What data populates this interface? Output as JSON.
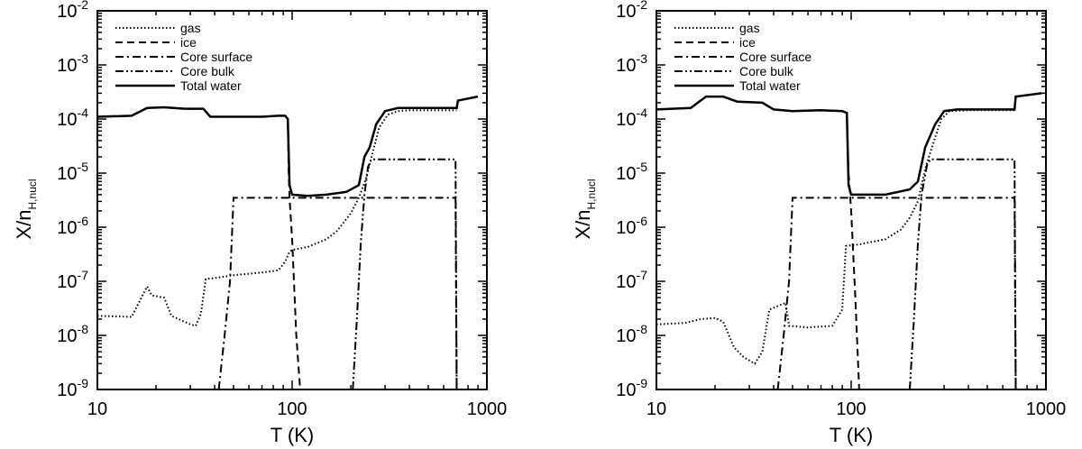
{
  "chart_data": [
    {
      "type": "line",
      "xlabel": "T (K)",
      "ylabel": "X/n",
      "ylabel_sub": "H,nucl",
      "xscale": "log",
      "yscale": "log",
      "xlim": [
        10,
        1000
      ],
      "ylim": [
        1e-09,
        0.01
      ],
      "x_ticks": [
        {
          "value": 10,
          "label": "10"
        },
        {
          "value": 100,
          "label": "100"
        },
        {
          "value": 1000,
          "label": "1000"
        }
      ],
      "y_ticks": [
        {
          "value": 1e-09,
          "base": "10",
          "exp": "-9"
        },
        {
          "value": 1e-08,
          "base": "10",
          "exp": "-8"
        },
        {
          "value": 1e-07,
          "base": "10",
          "exp": "-7"
        },
        {
          "value": 1e-06,
          "base": "10",
          "exp": "-6"
        },
        {
          "value": 1e-05,
          "base": "10",
          "exp": "-5"
        },
        {
          "value": 0.0001,
          "base": "10",
          "exp": "-4"
        },
        {
          "value": 0.001,
          "base": "10",
          "exp": "-3"
        },
        {
          "value": 0.01,
          "base": "10",
          "exp": "-2"
        }
      ],
      "legend_position": "top-left",
      "series": [
        {
          "name": "gas",
          "style": "dotted",
          "points": [
            [
              10,
              2.3e-08
            ],
            [
              15,
              2.2e-08
            ],
            [
              18,
              8e-08
            ],
            [
              19,
              5.5e-08
            ],
            [
              22,
              5e-08
            ],
            [
              24,
              2.3e-08
            ],
            [
              30,
              1.6e-08
            ],
            [
              32,
              1.5e-08
            ],
            [
              34,
              2.5e-08
            ],
            [
              36,
              1.1e-07
            ],
            [
              40,
              1.15e-07
            ],
            [
              50,
              1.3e-07
            ],
            [
              70,
              1.45e-07
            ],
            [
              85,
              1.6e-07
            ],
            [
              92,
              2.3e-07
            ],
            [
              97,
              3.5e-07
            ],
            [
              100,
              3.8e-07
            ],
            [
              120,
              4.3e-07
            ],
            [
              150,
              6e-07
            ],
            [
              170,
              8.5e-07
            ],
            [
              200,
              1.8e-06
            ],
            [
              220,
              3.5e-06
            ],
            [
              240,
              8e-06
            ],
            [
              260,
              2.5e-05
            ],
            [
              280,
              7e-05
            ],
            [
              310,
              0.00012
            ],
            [
              350,
              0.00014
            ],
            [
              400,
              0.000145
            ],
            [
              700,
              0.000145
            ]
          ]
        },
        {
          "name": "ice",
          "style": "dashed",
          "points": [
            [
              10,
              0.00011
            ],
            [
              15,
              0.000115
            ],
            [
              18,
              0.00016
            ],
            [
              22,
              0.000165
            ],
            [
              28,
              0.000155
            ],
            [
              35,
              0.000155
            ],
            [
              38,
              0.00011
            ],
            [
              50,
              0.00011
            ],
            [
              70,
              0.00011
            ],
            [
              85,
              0.000115
            ],
            [
              92,
              0.000115
            ],
            [
              95,
              0.0001
            ],
            [
              96,
              1e-05
            ],
            [
              97,
              3.5e-06
            ],
            [
              100,
              6e-07
            ],
            [
              105,
              1e-08
            ],
            [
              110,
              1e-09
            ]
          ]
        },
        {
          "name": "Core surface",
          "style": "dashdot",
          "points": [
            [
              42,
              1e-09
            ],
            [
              45,
              1e-08
            ],
            [
              48,
              1e-07
            ],
            [
              50,
              3.5e-06
            ],
            [
              60,
              3.5e-06
            ],
            [
              100,
              3.5e-06
            ],
            [
              300,
              3.5e-06
            ],
            [
              500,
              3.5e-06
            ],
            [
              690,
              3.5e-06
            ],
            [
              700,
              1e-09
            ]
          ]
        },
        {
          "name": "Core bulk",
          "style": "dashdotdot",
          "points": [
            [
              205,
              1e-09
            ],
            [
              215,
              2e-08
            ],
            [
              225,
              5e-07
            ],
            [
              235,
              4e-06
            ],
            [
              245,
              1.3e-05
            ],
            [
              255,
              1.8e-05
            ],
            [
              400,
              1.8e-05
            ],
            [
              690,
              1.8e-05
            ],
            [
              700,
              1e-09
            ]
          ]
        },
        {
          "name": "Total water",
          "style": "solid",
          "points": [
            [
              10,
              0.00011
            ],
            [
              15,
              0.000115
            ],
            [
              18,
              0.00016
            ],
            [
              22,
              0.000165
            ],
            [
              28,
              0.000155
            ],
            [
              35,
              0.000155
            ],
            [
              38,
              0.00011
            ],
            [
              50,
              0.00011
            ],
            [
              70,
              0.00011
            ],
            [
              85,
              0.000115
            ],
            [
              92,
              0.000115
            ],
            [
              95,
              0.0001
            ],
            [
              97,
              6e-06
            ],
            [
              100,
              4e-06
            ],
            [
              120,
              3.8e-06
            ],
            [
              150,
              4e-06
            ],
            [
              190,
              4.5e-06
            ],
            [
              220,
              6e-06
            ],
            [
              235,
              2e-05
            ],
            [
              250,
              3e-05
            ],
            [
              270,
              8e-05
            ],
            [
              300,
              0.00014
            ],
            [
              350,
              0.00016
            ],
            [
              500,
              0.00016
            ],
            [
              700,
              0.00016
            ],
            [
              710,
              0.00022
            ],
            [
              900,
              0.00026
            ]
          ]
        }
      ]
    },
    {
      "type": "line",
      "xlabel": "T (K)",
      "ylabel": "X/n",
      "ylabel_sub": "H,nucl",
      "xscale": "log",
      "yscale": "log",
      "xlim": [
        10,
        1000
      ],
      "ylim": [
        1e-09,
        0.01
      ],
      "x_ticks": [
        {
          "value": 10,
          "label": "10"
        },
        {
          "value": 100,
          "label": "100"
        },
        {
          "value": 1000,
          "label": "1000"
        }
      ],
      "y_ticks": [
        {
          "value": 1e-09,
          "base": "10",
          "exp": "-9"
        },
        {
          "value": 1e-08,
          "base": "10",
          "exp": "-8"
        },
        {
          "value": 1e-07,
          "base": "10",
          "exp": "-7"
        },
        {
          "value": 1e-06,
          "base": "10",
          "exp": "-6"
        },
        {
          "value": 1e-05,
          "base": "10",
          "exp": "-5"
        },
        {
          "value": 0.0001,
          "base": "10",
          "exp": "-4"
        },
        {
          "value": 0.001,
          "base": "10",
          "exp": "-3"
        },
        {
          "value": 0.01,
          "base": "10",
          "exp": "-2"
        }
      ],
      "legend_position": "top-left",
      "series": [
        {
          "name": "gas",
          "style": "dotted",
          "points": [
            [
              10,
              1.6e-08
            ],
            [
              14,
              1.7e-08
            ],
            [
              17,
              2e-08
            ],
            [
              20,
              2.1e-08
            ],
            [
              22,
              1.8e-08
            ],
            [
              25,
              6e-09
            ],
            [
              28,
              4e-09
            ],
            [
              32,
              3e-09
            ],
            [
              35,
              5e-09
            ],
            [
              38,
              3e-08
            ],
            [
              42,
              3.5e-08
            ],
            [
              46,
              4e-08
            ],
            [
              48,
              1.5e-08
            ],
            [
              60,
              1.4e-08
            ],
            [
              80,
              1.5e-08
            ],
            [
              90,
              3e-08
            ],
            [
              94,
              4.5e-07
            ],
            [
              110,
              4.8e-07
            ],
            [
              150,
              6e-07
            ],
            [
              180,
              9e-07
            ],
            [
              200,
              1.5e-06
            ],
            [
              220,
              3e-06
            ],
            [
              240,
              1.2e-05
            ],
            [
              260,
              3e-05
            ],
            [
              290,
              0.0001
            ],
            [
              320,
              0.00014
            ],
            [
              400,
              0.000145
            ],
            [
              700,
              0.000145
            ]
          ]
        },
        {
          "name": "ice",
          "style": "dashed",
          "points": [
            [
              10,
              0.00015
            ],
            [
              15,
              0.00016
            ],
            [
              18,
              0.00026
            ],
            [
              22,
              0.00026
            ],
            [
              26,
              0.00021
            ],
            [
              35,
              0.0002
            ],
            [
              40,
              0.00015
            ],
            [
              50,
              0.00014
            ],
            [
              70,
              0.000145
            ],
            [
              90,
              0.00014
            ],
            [
              95,
              0.00013
            ],
            [
              97,
              1e-05
            ],
            [
              100,
              2e-06
            ],
            [
              105,
              5e-08
            ],
            [
              110,
              1e-09
            ]
          ]
        },
        {
          "name": "Core surface",
          "style": "dashdot",
          "points": [
            [
              42,
              1e-09
            ],
            [
              45,
              1e-08
            ],
            [
              48,
              1e-07
            ],
            [
              50,
              3.5e-06
            ],
            [
              60,
              3.5e-06
            ],
            [
              100,
              3.5e-06
            ],
            [
              300,
              3.5e-06
            ],
            [
              500,
              3.5e-06
            ],
            [
              690,
              3.5e-06
            ],
            [
              700,
              1e-09
            ]
          ]
        },
        {
          "name": "Core bulk",
          "style": "dashdotdot",
          "points": [
            [
              200,
              1e-09
            ],
            [
              210,
              2e-08
            ],
            [
              220,
              5e-07
            ],
            [
              230,
              4e-06
            ],
            [
              245,
              1.4e-05
            ],
            [
              255,
              1.8e-05
            ],
            [
              400,
              1.8e-05
            ],
            [
              690,
              1.8e-05
            ],
            [
              700,
              1e-09
            ]
          ]
        },
        {
          "name": "Total water",
          "style": "solid",
          "points": [
            [
              10,
              0.00015
            ],
            [
              15,
              0.00016
            ],
            [
              18,
              0.00026
            ],
            [
              22,
              0.00026
            ],
            [
              26,
              0.00021
            ],
            [
              35,
              0.0002
            ],
            [
              40,
              0.00015
            ],
            [
              50,
              0.00014
            ],
            [
              70,
              0.000145
            ],
            [
              90,
              0.00014
            ],
            [
              95,
              0.00013
            ],
            [
              97,
              6e-06
            ],
            [
              100,
              4e-06
            ],
            [
              150,
              4e-06
            ],
            [
              200,
              5e-06
            ],
            [
              220,
              7e-06
            ],
            [
              240,
              3e-05
            ],
            [
              270,
              8e-05
            ],
            [
              300,
              0.00014
            ],
            [
              350,
              0.00015
            ],
            [
              500,
              0.00015
            ],
            [
              690,
              0.00015
            ],
            [
              700,
              0.00026
            ],
            [
              950,
              0.0003
            ]
          ]
        }
      ]
    }
  ]
}
